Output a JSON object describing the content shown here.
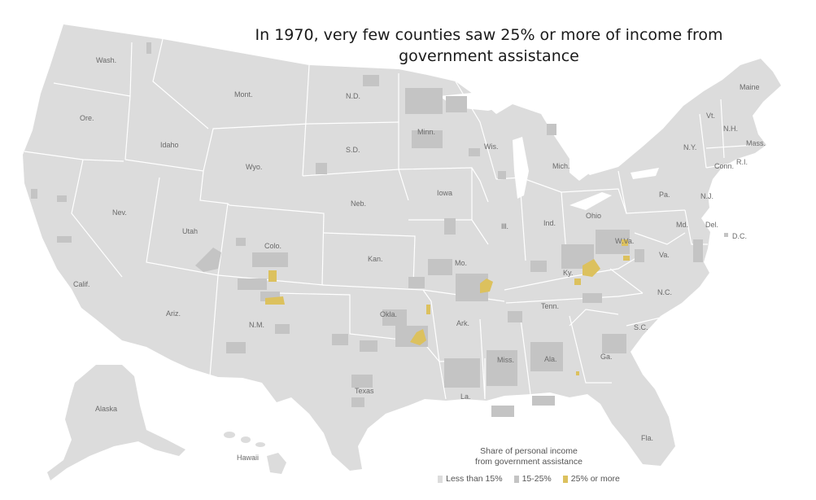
{
  "title": "In 1970, very few counties saw 25% or more of income from government assistance",
  "legend": {
    "title_line1": "Share of personal income",
    "title_line2": "from government assistance",
    "items": [
      {
        "label": "Less than 15%",
        "color": "#dcdcdc"
      },
      {
        "label": "15-25%",
        "color": "#c4c4c4"
      },
      {
        "label": "25% or more",
        "color": "#dcc15e"
      }
    ]
  },
  "colors": {
    "land": "#dcdcdc",
    "mid": "#c4c4c4",
    "high": "#dcc15e",
    "border": "#ffffff"
  },
  "states": {
    "wash": "Wash.",
    "ore": "Ore.",
    "calif": "Calif.",
    "idaho": "Idaho",
    "nev": "Nev.",
    "mont": "Mont.",
    "wyo": "Wyo.",
    "utah": "Utah",
    "ariz": "Ariz.",
    "colo": "Colo.",
    "nm": "N.M.",
    "nd": "N.D.",
    "sd": "S.D.",
    "neb": "Neb.",
    "kan": "Kan.",
    "okla": "Okla.",
    "texas": "Texas",
    "minn": "Minn.",
    "iowa": "Iowa",
    "mo": "Mo.",
    "ark": "Ark.",
    "la": "La.",
    "wis": "Wis.",
    "ill": "Ill.",
    "mich": "Mich.",
    "ind": "Ind.",
    "ohio": "Ohio",
    "ky": "Ky.",
    "tenn": "Tenn.",
    "miss": "Miss.",
    "ala": "Ala.",
    "ga": "Ga.",
    "fla": "Fla.",
    "sc": "S.C.",
    "nc": "N.C.",
    "va": "Va.",
    "wva": "W.Va.",
    "pa": "Pa.",
    "ny": "N.Y.",
    "vt": "Vt.",
    "nh": "N.H.",
    "maine": "Maine",
    "mass": "Mass.",
    "conn": "Conn.",
    "ri": "R.I.",
    "nj": "N.J.",
    "del": "Del.",
    "md": "Md.",
    "dc": "D.C.",
    "alaska": "Alaska",
    "hawaii": "Hawaii"
  }
}
